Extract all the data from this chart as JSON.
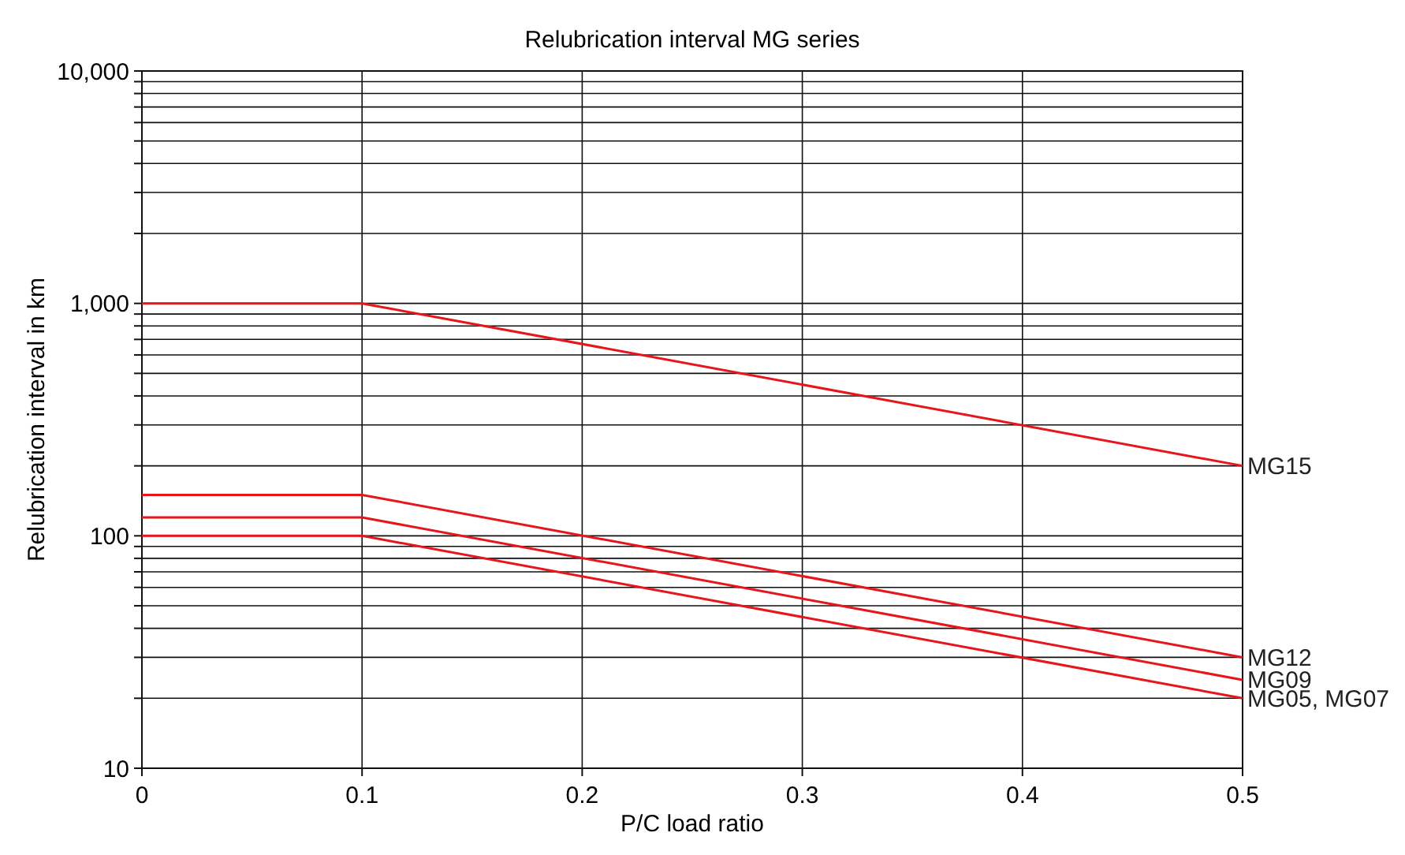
{
  "chart_data": {
    "type": "line",
    "title": "Relubrication interval MG series",
    "xlabel": "P/C load ratio",
    "ylabel": "Relubrication interval in km",
    "x": [
      0,
      0.1,
      0.5
    ],
    "series": [
      {
        "name": "MG15",
        "color": "#e8151b",
        "values": [
          1000,
          1000,
          200
        ]
      },
      {
        "name": "MG12",
        "color": "#e8151b",
        "values": [
          150,
          150,
          30
        ]
      },
      {
        "name": "MG09",
        "color": "#e8151b",
        "values": [
          120,
          120,
          24
        ]
      },
      {
        "name": "MG05, MG07",
        "color": "#e8151b",
        "values": [
          100,
          100,
          20
        ]
      }
    ],
    "log": "y",
    "xlim": [
      0,
      0.5
    ],
    "xticks": [
      0,
      0.1,
      0.2,
      0.3,
      0.4,
      0.5
    ],
    "ylim": [
      10,
      10000
    ],
    "yticks": [
      {
        "value": 10,
        "label": "10"
      },
      {
        "value": 20,
        "label": null
      },
      {
        "value": 30,
        "label": null
      },
      {
        "value": 40,
        "label": null
      },
      {
        "value": 50,
        "label": null
      },
      {
        "value": 60,
        "label": null
      },
      {
        "value": 70,
        "label": null
      },
      {
        "value": 80,
        "label": null
      },
      {
        "value": 90,
        "label": null
      },
      {
        "value": 100,
        "label": "100"
      },
      {
        "value": 200,
        "label": null
      },
      {
        "value": 300,
        "label": null
      },
      {
        "value": 400,
        "label": null
      },
      {
        "value": 500,
        "label": null
      },
      {
        "value": 600,
        "label": null
      },
      {
        "value": 700,
        "label": null
      },
      {
        "value": 800,
        "label": null
      },
      {
        "value": 900,
        "label": null
      },
      {
        "value": 1000,
        "label": "1,000"
      },
      {
        "value": 2000,
        "label": null
      },
      {
        "value": 3000,
        "label": null
      },
      {
        "value": 4000,
        "label": null
      },
      {
        "value": 5000,
        "label": null
      },
      {
        "value": 6000,
        "label": null
      },
      {
        "value": 7000,
        "label": null
      },
      {
        "value": 8000,
        "label": null
      },
      {
        "value": 9000,
        "label": null
      },
      {
        "value": 10000,
        "label": "10,000"
      }
    ],
    "grid": true,
    "marker": "none",
    "line_style": "solid"
  }
}
